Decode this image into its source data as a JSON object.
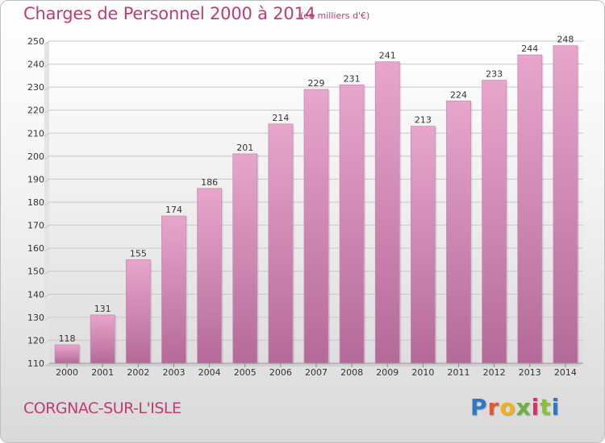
{
  "header": {
    "title": "Charges de Personnel 2000 à 2014",
    "subtitle": "(en milliers d'€)"
  },
  "footer": {
    "commune": "CORGNAC-SUR-L'ISLE",
    "logo_letters": [
      "P",
      "r",
      "o",
      "x",
      "i",
      "t",
      "i"
    ]
  },
  "colors": {
    "bar_top": "#e8a6cc",
    "bar_bottom": "#b46a98",
    "accent": "#c03c72"
  },
  "chart_data": {
    "type": "bar",
    "title": "Charges de Personnel 2000 à 2014",
    "subtitle": "(en milliers d'€)",
    "xlabel": "",
    "ylabel": "",
    "categories": [
      "2000",
      "2001",
      "2002",
      "2003",
      "2004",
      "2005",
      "2006",
      "2007",
      "2008",
      "2009",
      "2010",
      "2011",
      "2012",
      "2013",
      "2014"
    ],
    "values": [
      118,
      131,
      155,
      174,
      186,
      201,
      214,
      229,
      231,
      241,
      213,
      224,
      233,
      244,
      248
    ],
    "ylim": [
      110,
      250
    ],
    "yticks": [
      110,
      120,
      130,
      140,
      150,
      160,
      170,
      180,
      190,
      200,
      210,
      220,
      230,
      240,
      250
    ],
    "grid": true,
    "legend": "none"
  }
}
